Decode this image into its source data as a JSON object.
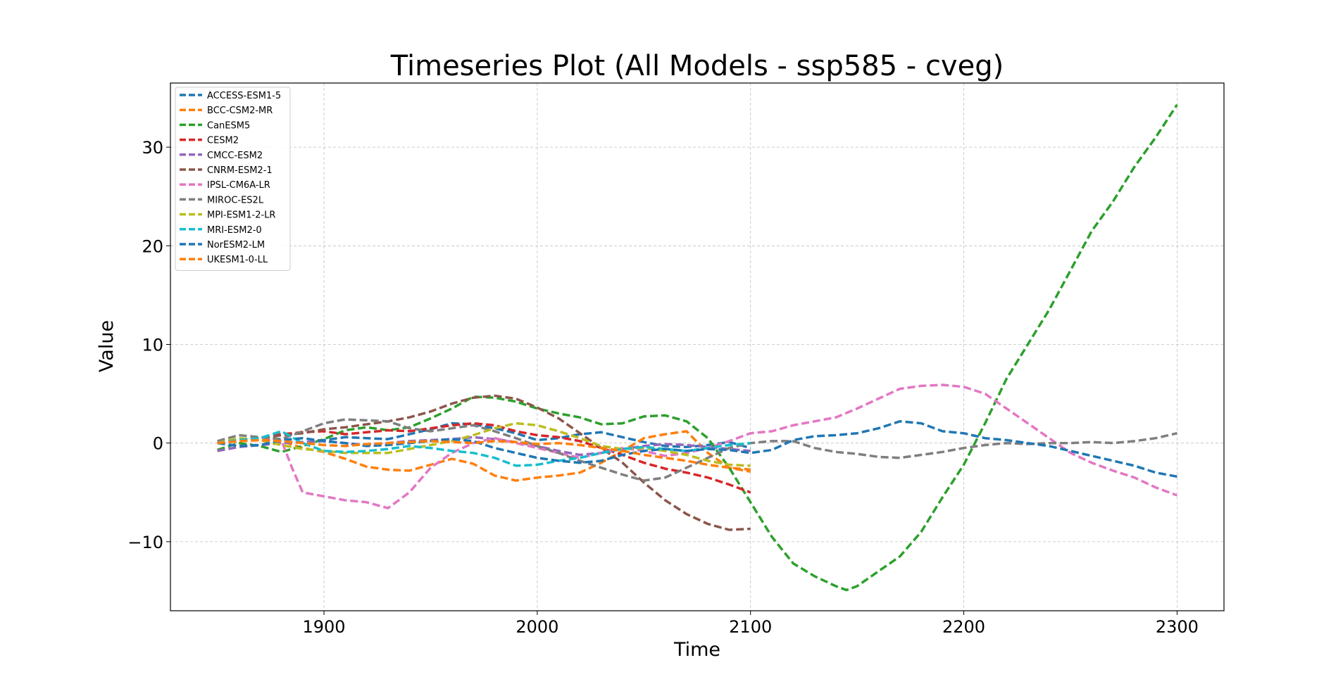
{
  "chart_data": {
    "type": "line",
    "title": "Timeseries Plot (All Models - ssp585 - cveg)",
    "xlabel": "Time",
    "ylabel": "Value",
    "xlim": [
      1828,
      2322
    ],
    "ylim": [
      -17,
      36.5
    ],
    "xticks": [
      1900,
      2000,
      2100,
      2200,
      2300
    ],
    "yticks": [
      -10,
      0,
      10,
      20,
      30
    ],
    "grid": true,
    "legend_position": "top-left",
    "line_style": "dashed",
    "series": [
      {
        "name": "ACCESS-ESM1-5",
        "color": "#1f77b4",
        "x": [
          1850,
          1860,
          1870,
          1880,
          1890,
          1900,
          1910,
          1920,
          1930,
          1940,
          1950,
          1960,
          1970,
          1980,
          1990,
          2000,
          2010,
          2020,
          2030,
          2040,
          2050,
          2060,
          2070,
          2080,
          2090,
          2100
        ],
        "y": [
          0,
          0.2,
          0.4,
          0.2,
          0,
          0.3,
          0.6,
          0.5,
          0.4,
          0.9,
          1.4,
          2,
          1.9,
          1.5,
          1,
          0.3,
          0.5,
          0.9,
          1.1,
          0.6,
          0.1,
          -0.3,
          -0.4,
          -0.2,
          0.1,
          -0.5
        ]
      },
      {
        "name": "BCC-CSM2-MR",
        "color": "#ff7f0e",
        "x": [
          1850,
          1860,
          1870,
          1880,
          1890,
          1900,
          1910,
          1920,
          1930,
          1940,
          1950,
          1960,
          1970,
          1980,
          1990,
          2000,
          2010,
          2020,
          2030,
          2040,
          2050,
          2060,
          2070,
          2080,
          2090,
          2100
        ],
        "y": [
          0,
          0.3,
          0.4,
          0.2,
          -0.5,
          -0.9,
          -1.6,
          -2.4,
          -2.7,
          -2.8,
          -2.2,
          -1.6,
          -2.1,
          -3.3,
          -3.8,
          -3.5,
          -3.3,
          -3,
          -2,
          -0.8,
          0.5,
          0.9,
          1.2,
          -1,
          -2.5,
          -2.9
        ]
      },
      {
        "name": "CanESM5",
        "color": "#2ca02c",
        "x": [
          1850,
          1860,
          1870,
          1880,
          1890,
          1900,
          1910,
          1920,
          1930,
          1940,
          1950,
          1960,
          1970,
          1980,
          1990,
          2000,
          2010,
          2020,
          2030,
          2040,
          2050,
          2060,
          2070,
          2080,
          2090,
          2100,
          2110,
          2120,
          2130,
          2140,
          2145,
          2150,
          2160,
          2170,
          2180,
          2190,
          2200,
          2210,
          2220,
          2230,
          2240,
          2250,
          2260,
          2270,
          2280,
          2290,
          2300
        ],
        "y": [
          -0.7,
          0,
          -0.3,
          -0.9,
          -0.3,
          0.4,
          1.3,
          1.6,
          1.3,
          1.6,
          2.5,
          3.5,
          4.7,
          4.6,
          4.2,
          3.5,
          3,
          2.6,
          1.9,
          2,
          2.7,
          2.8,
          2.2,
          0.5,
          -2.5,
          -6,
          -9.5,
          -12.2,
          -13.5,
          -14.5,
          -14.9,
          -14.5,
          -13,
          -11.5,
          -9,
          -5.5,
          -2.2,
          2,
          6.5,
          10,
          13.5,
          17.5,
          21.5,
          24.5,
          28,
          31,
          34.3
        ]
      },
      {
        "name": "CESM2",
        "color": "#d62728",
        "x": [
          1850,
          1860,
          1870,
          1880,
          1890,
          1900,
          1910,
          1920,
          1930,
          1940,
          1950,
          1960,
          1970,
          1980,
          1990,
          2000,
          2010,
          2020,
          2030,
          2040,
          2050,
          2060,
          2070,
          2080,
          2090,
          2100
        ],
        "y": [
          0,
          0.2,
          0.5,
          0.9,
          1.1,
          1.2,
          0.9,
          1.1,
          1.3,
          1.2,
          1.5,
          1.8,
          2,
          1.8,
          1.2,
          0.8,
          0.6,
          0.2,
          -0.5,
          -1.2,
          -2,
          -2.6,
          -3,
          -3.5,
          -4.2,
          -5
        ]
      },
      {
        "name": "CMCC-ESM2",
        "color": "#9467bd",
        "x": [
          1850,
          1860,
          1870,
          1880,
          1890,
          1900,
          1910,
          1920,
          1930,
          1940,
          1950,
          1960,
          1970,
          1980,
          1990,
          2000,
          2010,
          2020,
          2030,
          2040,
          2050,
          2060,
          2070,
          2080,
          2090,
          2100
        ],
        "y": [
          -0.8,
          -0.4,
          -0.2,
          0,
          0.1,
          0.2,
          0,
          -0.2,
          0,
          0.2,
          0.3,
          0.4,
          0.6,
          0.4,
          0.1,
          -0.3,
          -0.8,
          -1.2,
          -1,
          -0.6,
          -0.3,
          -0.1,
          -0.2,
          -0.4,
          -0.6,
          -0.8
        ]
      },
      {
        "name": "CNRM-ESM2-1",
        "color": "#8c564b",
        "x": [
          1850,
          1860,
          1870,
          1880,
          1890,
          1900,
          1910,
          1920,
          1930,
          1940,
          1950,
          1960,
          1970,
          1980,
          1990,
          2000,
          2010,
          2020,
          2030,
          2040,
          2050,
          2060,
          2070,
          2080,
          2090,
          2100
        ],
        "y": [
          0,
          0.3,
          0.5,
          0.8,
          1,
          1.4,
          1.6,
          1.9,
          2.2,
          2.6,
          3.2,
          4,
          4.6,
          4.8,
          4.5,
          3.6,
          2.5,
          1,
          -0.5,
          -2,
          -4,
          -5.8,
          -7.2,
          -8.2,
          -8.8,
          -8.7
        ]
      },
      {
        "name": "IPSL-CM6A-LR",
        "color": "#e377c2",
        "x": [
          1850,
          1860,
          1870,
          1880,
          1885,
          1890,
          1900,
          1910,
          1920,
          1930,
          1940,
          1950,
          1960,
          1970,
          1980,
          1990,
          2000,
          2010,
          2020,
          2030,
          2040,
          2050,
          2060,
          2070,
          2080,
          2090,
          2100,
          2110,
          2120,
          2130,
          2140,
          2150,
          2160,
          2170,
          2180,
          2190,
          2200,
          2210,
          2220,
          2230,
          2240,
          2250,
          2260,
          2270,
          2280,
          2290,
          2300
        ],
        "y": [
          0,
          0.2,
          0.4,
          0.3,
          -2.5,
          -5,
          -5.4,
          -5.8,
          -6,
          -6.6,
          -5,
          -2.5,
          -1,
          0,
          0.5,
          0,
          -0.5,
          -1,
          -1.5,
          -1,
          -0.5,
          -0.8,
          -1.3,
          -1,
          -0.5,
          0.2,
          1,
          1.2,
          1.8,
          2.2,
          2.6,
          3.5,
          4.5,
          5.5,
          5.8,
          5.9,
          5.7,
          5,
          3.5,
          2,
          0.5,
          -1,
          -2,
          -2.8,
          -3.5,
          -4.5,
          -5.3
        ]
      },
      {
        "name": "MIROC-ES2L",
        "color": "#7f7f7f",
        "x": [
          1850,
          1860,
          1870,
          1880,
          1890,
          1900,
          1910,
          1920,
          1930,
          1940,
          1950,
          1960,
          1970,
          1980,
          1990,
          2000,
          2010,
          2020,
          2030,
          2040,
          2050,
          2060,
          2070,
          2080,
          2090,
          2100,
          2110,
          2120,
          2130,
          2140,
          2150,
          2160,
          2170,
          2180,
          2190,
          2200,
          2210,
          2220,
          2230,
          2240,
          2250,
          2260,
          2270,
          2280,
          2290,
          2300
        ],
        "y": [
          0.2,
          0.8,
          0.6,
          0.4,
          1.2,
          2,
          2.4,
          2.3,
          2.2,
          1.5,
          1.2,
          1.5,
          1.8,
          1.2,
          0.5,
          -0.3,
          -1,
          -1.8,
          -2.5,
          -3.2,
          -3.8,
          -3.5,
          -2.5,
          -1.5,
          -0.5,
          0,
          0.2,
          0.2,
          -0.5,
          -0.9,
          -1.1,
          -1.4,
          -1.5,
          -1.2,
          -0.9,
          -0.5,
          -0.2,
          0,
          -0.1,
          0,
          0,
          0.1,
          0,
          0.2,
          0.5,
          1
        ]
      },
      {
        "name": "MPI-ESM1-2-LR",
        "color": "#bcbd22",
        "x": [
          1850,
          1860,
          1870,
          1880,
          1890,
          1900,
          1910,
          1920,
          1930,
          1940,
          1950,
          1960,
          1970,
          1980,
          1990,
          2000,
          2010,
          2020,
          2030,
          2040,
          2050,
          2060,
          2070,
          2080,
          2090,
          2100
        ],
        "y": [
          0,
          0.5,
          0.3,
          -0.2,
          -0.6,
          -0.8,
          -1,
          -1,
          -1,
          -0.6,
          -0.2,
          0.2,
          0.8,
          1.5,
          2,
          1.8,
          1.2,
          0.5,
          -0.3,
          -0.6,
          -0.5,
          -0.8,
          -1.2,
          -1.8,
          -2.2,
          -2.3
        ]
      },
      {
        "name": "MRI-ESM2-0",
        "color": "#17becf",
        "x": [
          1850,
          1860,
          1870,
          1880,
          1890,
          1900,
          1910,
          1920,
          1930,
          1940,
          1950,
          1960,
          1970,
          1980,
          1990,
          2000,
          2010,
          2020,
          2030,
          2040,
          2050,
          2060,
          2070,
          2080,
          2090,
          2100
        ],
        "y": [
          0,
          0.3,
          0.5,
          1.2,
          0,
          -0.8,
          -0.9,
          -0.8,
          -0.6,
          -0.3,
          -0.5,
          -0.8,
          -1,
          -1.5,
          -2.3,
          -2.2,
          -1.8,
          -1.5,
          -1,
          -0.6,
          -0.4,
          -0.6,
          -0.8,
          -0.5,
          -0.2,
          0
        ]
      },
      {
        "name": "NorESM2-LM",
        "color": "#1f77b4",
        "x": [
          1850,
          1860,
          1870,
          1880,
          1890,
          1900,
          1910,
          1920,
          1930,
          1940,
          1950,
          1960,
          1970,
          1980,
          1990,
          2000,
          2010,
          2020,
          2030,
          2040,
          2050,
          2060,
          2070,
          2080,
          2090,
          2100,
          2110,
          2120,
          2130,
          2140,
          2150,
          2160,
          2170,
          2180,
          2190,
          2200,
          2210,
          2220,
          2230,
          2240,
          2250,
          2260,
          2270,
          2280,
          2290,
          2300
        ],
        "y": [
          0,
          -0.3,
          -0.2,
          0.3,
          0.5,
          0.2,
          0,
          -0.3,
          -0.2,
          0,
          0.2,
          0.4,
          0.2,
          -0.5,
          -1,
          -1.5,
          -1.8,
          -2,
          -1.8,
          -1.2,
          -0.8,
          -0.6,
          -0.8,
          -0.6,
          -0.7,
          -1,
          -0.7,
          0.3,
          0.7,
          0.8,
          1,
          1.5,
          2.2,
          2,
          1.2,
          1,
          0.5,
          0.3,
          0,
          -0.3,
          -0.8,
          -1.3,
          -1.8,
          -2.3,
          -3,
          -3.4
        ]
      },
      {
        "name": "UKESM1-0-LL",
        "color": "#ff7f0e",
        "x": [
          1850,
          1860,
          1870,
          1880,
          1890,
          1900,
          1910,
          1920,
          1930,
          1940,
          1950,
          1960,
          1970,
          1980,
          1990,
          2000,
          2010,
          2020,
          2030,
          2040,
          2050,
          2060,
          2070,
          2080,
          2090,
          2100
        ],
        "y": [
          0,
          0.2,
          0.3,
          0.2,
          0,
          -0.2,
          -0.3,
          -0.1,
          0,
          0.1,
          0.2,
          0.1,
          0,
          0.2,
          0.1,
          -0.1,
          0,
          -0.2,
          -0.5,
          -0.8,
          -1.2,
          -1.5,
          -1.8,
          -2.2,
          -2.5,
          -2.7
        ]
      }
    ]
  }
}
